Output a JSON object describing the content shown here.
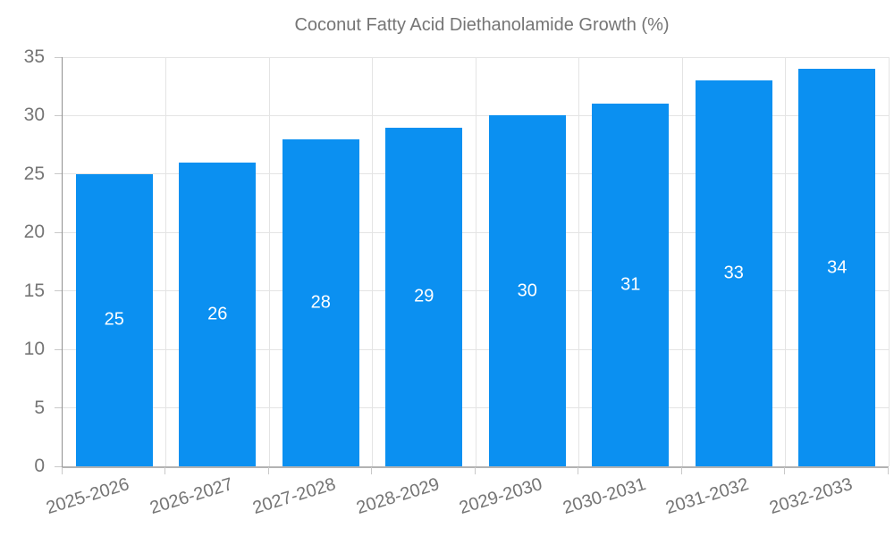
{
  "chart_data": {
    "type": "bar",
    "title": "Coconut Fatty Acid Diethanolamide Growth (%)",
    "categories": [
      "2025-2026",
      "2026-2027",
      "2027-2028",
      "2028-2029",
      "2029-2030",
      "2030-2031",
      "2031-2032",
      "2032-2033"
    ],
    "values": [
      25,
      26,
      28,
      29,
      30,
      31,
      33,
      34
    ],
    "xlabel": "",
    "ylabel": "",
    "ylim": [
      0,
      35
    ],
    "yticks": [
      0,
      5,
      10,
      15,
      20,
      25,
      30,
      35
    ],
    "grid": true,
    "value_label_position": "inside-center",
    "legend_position": "top-center",
    "x_label_rotation_deg": -17,
    "colors": {
      "bar": "#0b90f1",
      "bar_label": "#ffffff",
      "text": "#757575",
      "grid": "#e4e4e4",
      "axis_left": "#8f8f8f",
      "axis_bottom": "#b3b3b3",
      "tick": "#c9c9c9",
      "background": "#ffffff"
    }
  }
}
